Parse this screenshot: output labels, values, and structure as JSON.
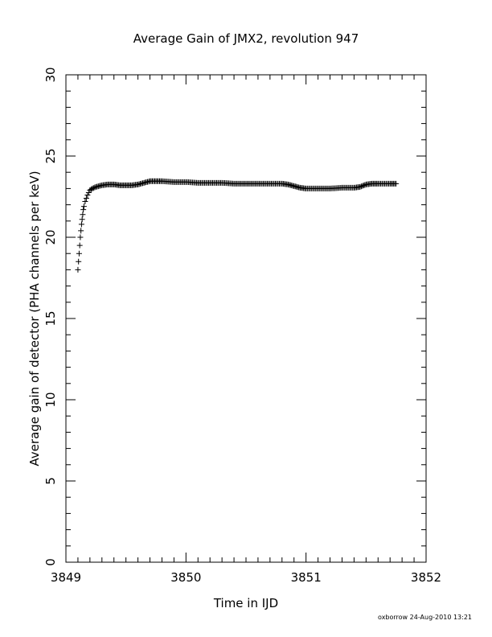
{
  "chart_data": {
    "type": "scatter",
    "title": "Average Gain of JMX2, revolution 947",
    "xlabel": "Time in IJD",
    "ylabel": "Average gain of detector (PHA channels per keV)",
    "xlim": [
      3849,
      3852
    ],
    "ylim": [
      0,
      30
    ],
    "xticks": [
      3849,
      3850,
      3851,
      3852
    ],
    "yticks": [
      0,
      5,
      10,
      15,
      20,
      25,
      30
    ],
    "marker": "plus",
    "series": [
      {
        "points": [
          [
            3849.1,
            18.0
          ],
          [
            3849.105,
            18.5
          ],
          [
            3849.11,
            19.0
          ],
          [
            3849.115,
            19.5
          ],
          [
            3849.12,
            20.0
          ],
          [
            3849.125,
            20.4
          ],
          [
            3849.13,
            20.8
          ],
          [
            3849.135,
            21.1
          ],
          [
            3849.14,
            21.4
          ],
          [
            3849.145,
            21.7
          ],
          [
            3849.15,
            21.9
          ],
          [
            3849.16,
            22.2
          ],
          [
            3849.17,
            22.4
          ],
          [
            3849.18,
            22.6
          ],
          [
            3849.19,
            22.75
          ],
          [
            3849.2,
            22.9
          ],
          [
            3849.22,
            23.0
          ],
          [
            3849.25,
            23.1
          ],
          [
            3849.3,
            23.2
          ],
          [
            3849.35,
            23.25
          ],
          [
            3849.4,
            23.25
          ],
          [
            3849.45,
            23.2
          ],
          [
            3849.5,
            23.2
          ],
          [
            3849.55,
            23.2
          ],
          [
            3849.6,
            23.25
          ],
          [
            3849.65,
            23.35
          ],
          [
            3849.7,
            23.45
          ],
          [
            3849.75,
            23.45
          ],
          [
            3849.8,
            23.45
          ],
          [
            3849.9,
            23.4
          ],
          [
            3850.0,
            23.4
          ],
          [
            3850.1,
            23.35
          ],
          [
            3850.2,
            23.35
          ],
          [
            3850.3,
            23.35
          ],
          [
            3850.4,
            23.3
          ],
          [
            3850.5,
            23.3
          ],
          [
            3850.6,
            23.3
          ],
          [
            3850.7,
            23.3
          ],
          [
            3850.8,
            23.3
          ],
          [
            3850.85,
            23.25
          ],
          [
            3850.9,
            23.15
          ],
          [
            3850.95,
            23.05
          ],
          [
            3851.0,
            23.0
          ],
          [
            3851.1,
            23.0
          ],
          [
            3851.2,
            23.0
          ],
          [
            3851.3,
            23.05
          ],
          [
            3851.4,
            23.05
          ],
          [
            3851.45,
            23.1
          ],
          [
            3851.5,
            23.25
          ],
          [
            3851.55,
            23.3
          ],
          [
            3851.6,
            23.3
          ],
          [
            3851.7,
            23.3
          ],
          [
            3851.75,
            23.3
          ]
        ]
      }
    ]
  },
  "footer": "oxborrow 24-Aug-2010 13:21"
}
